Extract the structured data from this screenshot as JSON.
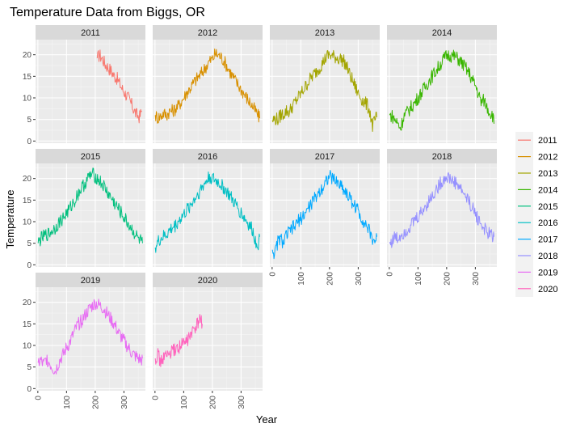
{
  "chart_data": {
    "type": "line",
    "title": "Temperature Data from Biggs, OR",
    "xlabel": "Year",
    "ylabel": "Temperature",
    "xlim": [
      -8,
      375
    ],
    "ylim": [
      -0.5,
      23.5
    ],
    "x_ticks": [
      0,
      100,
      200,
      300
    ],
    "y_ticks": [
      0,
      5,
      10,
      15,
      20
    ],
    "grid": true,
    "layout": "facet_wrap by year, 4 columns",
    "legend_position": "right",
    "series": [
      {
        "name": "2011",
        "color": "#F8766D",
        "x": [
          207,
          215,
          225,
          235,
          245,
          255,
          265,
          275,
          285,
          295,
          305,
          315,
          325,
          335,
          345,
          355,
          362
        ],
        "y": [
          19.2,
          20.0,
          19.1,
          17.8,
          17.1,
          16.3,
          15.2,
          14.6,
          13.3,
          12.0,
          11.0,
          10.0,
          8.7,
          7.2,
          6.0,
          5.6,
          7.0
        ]
      },
      {
        "name": "2012",
        "color": "#D89000",
        "x": [
          1,
          10,
          20,
          30,
          40,
          50,
          60,
          70,
          80,
          90,
          100,
          110,
          120,
          130,
          140,
          150,
          160,
          170,
          180,
          190,
          200,
          210,
          220,
          230,
          240,
          250,
          260,
          270,
          280,
          290,
          300,
          310,
          320,
          330,
          340,
          350,
          360,
          365
        ],
        "y": [
          6.0,
          5.4,
          5.8,
          6.5,
          6.0,
          6.9,
          7.0,
          7.4,
          8.0,
          9.0,
          10.0,
          11.2,
          12.0,
          13.0,
          14.0,
          14.8,
          15.5,
          16.5,
          17.5,
          18.5,
          19.0,
          20.2,
          20.0,
          19.5,
          18.6,
          17.5,
          16.2,
          15.1,
          14.0,
          13.0,
          12.0,
          11.0,
          10.0,
          9.0,
          8.0,
          7.0,
          5.8,
          5.3
        ]
      },
      {
        "name": "2013",
        "color": "#A3A500",
        "x": [
          1,
          10,
          20,
          30,
          40,
          50,
          60,
          70,
          80,
          90,
          100,
          110,
          120,
          130,
          140,
          150,
          160,
          170,
          180,
          190,
          200,
          210,
          220,
          230,
          240,
          250,
          260,
          270,
          280,
          290,
          300,
          310,
          320,
          330,
          340,
          350,
          360,
          365
        ],
        "y": [
          4.8,
          5.2,
          5.0,
          6.0,
          6.3,
          7.0,
          6.8,
          8.0,
          9.0,
          10.0,
          11.0,
          12.0,
          13.0,
          14.2,
          15.0,
          15.8,
          16.6,
          17.5,
          18.5,
          19.6,
          20.0,
          19.6,
          19.5,
          19.2,
          19.0,
          18.5,
          17.2,
          15.5,
          14.0,
          12.5,
          11.0,
          10.0,
          9.0,
          8.5,
          7.0,
          3.5,
          5.0,
          5.5
        ]
      },
      {
        "name": "2014",
        "color": "#39B600",
        "x": [
          1,
          10,
          20,
          30,
          40,
          50,
          60,
          70,
          80,
          90,
          100,
          110,
          120,
          130,
          140,
          150,
          160,
          170,
          180,
          190,
          200,
          210,
          220,
          230,
          240,
          250,
          260,
          270,
          280,
          290,
          300,
          310,
          320,
          330,
          340,
          350,
          360,
          365
        ],
        "y": [
          6.0,
          5.8,
          5.0,
          4.0,
          3.0,
          5.8,
          6.5,
          7.3,
          8.2,
          9.0,
          10.0,
          11.0,
          12.0,
          13.0,
          14.2,
          15.1,
          16.0,
          17.0,
          18.0,
          19.0,
          19.8,
          20.0,
          19.7,
          19.5,
          19.0,
          18.3,
          17.5,
          16.5,
          15.5,
          14.0,
          13.0,
          11.0,
          9.0,
          9.5,
          8.0,
          6.8,
          6.0,
          4.0
        ]
      },
      {
        "name": "2015",
        "color": "#00BF7D",
        "x": [
          1,
          10,
          20,
          30,
          40,
          50,
          60,
          70,
          80,
          90,
          100,
          110,
          120,
          130,
          140,
          150,
          160,
          170,
          180,
          190,
          200,
          210,
          220,
          230,
          240,
          250,
          260,
          270,
          280,
          290,
          300,
          310,
          320,
          330,
          340,
          350,
          360,
          365
        ],
        "y": [
          5.0,
          6.0,
          6.5,
          7.0,
          7.2,
          8.0,
          8.5,
          9.5,
          10.2,
          11.0,
          12.0,
          12.8,
          14.0,
          15.0,
          16.5,
          17.5,
          18.5,
          19.5,
          20.5,
          21.0,
          20.5,
          19.8,
          19.0,
          18.2,
          17.0,
          16.0,
          15.0,
          14.0,
          13.0,
          12.0,
          11.0,
          10.0,
          9.0,
          8.0,
          7.0,
          6.0,
          5.5,
          5.0
        ]
      },
      {
        "name": "2016",
        "color": "#00BFC4",
        "x": [
          1,
          10,
          20,
          30,
          40,
          50,
          60,
          70,
          80,
          90,
          100,
          110,
          120,
          130,
          140,
          150,
          160,
          170,
          180,
          190,
          200,
          210,
          220,
          230,
          240,
          250,
          260,
          270,
          280,
          290,
          300,
          310,
          320,
          330,
          340,
          350,
          360,
          365
        ],
        "y": [
          4.0,
          5.2,
          6.0,
          6.5,
          7.0,
          7.8,
          8.5,
          9.0,
          10.0,
          10.8,
          11.5,
          12.5,
          13.5,
          14.5,
          15.5,
          16.5,
          17.5,
          18.5,
          19.5,
          20.5,
          20.0,
          19.5,
          19.2,
          18.5,
          17.8,
          17.0,
          16.0,
          15.0,
          14.0,
          13.0,
          12.0,
          11.0,
          10.0,
          9.0,
          8.0,
          5.5,
          5.0,
          6.5
        ]
      },
      {
        "name": "2017",
        "color": "#00A9FF",
        "x": [
          1,
          10,
          20,
          30,
          40,
          50,
          60,
          70,
          80,
          90,
          100,
          110,
          120,
          130,
          140,
          150,
          160,
          170,
          180,
          190,
          200,
          210,
          220,
          230,
          240,
          250,
          260,
          270,
          280,
          290,
          300,
          310,
          320,
          330,
          340,
          350,
          360,
          365
        ],
        "y": [
          3.5,
          2.5,
          5.5,
          6.0,
          5.0,
          7.0,
          7.5,
          8.5,
          9.0,
          10.0,
          10.8,
          11.5,
          12.5,
          13.5,
          14.5,
          15.5,
          16.5,
          17.5,
          18.5,
          19.8,
          20.5,
          20.0,
          19.5,
          19.0,
          18.5,
          17.5,
          16.5,
          15.5,
          14.5,
          13.5,
          12.5,
          11.0,
          10.0,
          9.0,
          7.5,
          6.0,
          5.5,
          6.5
        ]
      },
      {
        "name": "2018",
        "color": "#9590FF",
        "x": [
          1,
          10,
          20,
          30,
          40,
          50,
          60,
          70,
          80,
          90,
          100,
          110,
          120,
          130,
          140,
          150,
          160,
          170,
          180,
          190,
          200,
          210,
          220,
          230,
          240,
          250,
          260,
          270,
          280,
          290,
          300,
          310,
          320,
          330,
          340,
          350,
          360,
          365
        ],
        "y": [
          5.0,
          5.5,
          6.5,
          6.0,
          7.0,
          7.5,
          8.0,
          8.8,
          9.5,
          10.5,
          11.0,
          12.0,
          13.0,
          14.0,
          15.0,
          16.0,
          17.0,
          18.0,
          19.0,
          19.8,
          20.5,
          20.0,
          19.5,
          19.0,
          18.5,
          17.5,
          16.5,
          15.5,
          14.5,
          13.0,
          12.0,
          10.5,
          9.5,
          8.5,
          7.5,
          7.0,
          6.8,
          6.5
        ]
      },
      {
        "name": "2019",
        "color": "#E76BF3",
        "x": [
          1,
          10,
          20,
          30,
          40,
          50,
          60,
          70,
          80,
          90,
          100,
          110,
          120,
          130,
          140,
          150,
          160,
          170,
          180,
          190,
          200,
          210,
          220,
          230,
          240,
          250,
          260,
          270,
          280,
          290,
          300,
          310,
          320,
          330,
          340,
          350,
          360,
          365
        ],
        "y": [
          6.0,
          6.5,
          5.5,
          7.0,
          6.0,
          5.0,
          4.0,
          5.5,
          7.0,
          8.0,
          9.5,
          10.5,
          12.0,
          13.5,
          14.8,
          15.5,
          16.5,
          17.5,
          18.5,
          19.2,
          19.8,
          19.5,
          19.0,
          18.5,
          17.5,
          16.5,
          15.5,
          14.5,
          13.0,
          12.0,
          11.0,
          10.0,
          9.0,
          8.0,
          7.5,
          7.0,
          6.5,
          7.0
        ]
      },
      {
        "name": "2020",
        "color": "#FF62BC",
        "x": [
          1,
          10,
          20,
          30,
          40,
          50,
          60,
          70,
          80,
          90,
          100,
          110,
          120,
          130,
          140,
          150,
          160,
          165
        ],
        "y": [
          7.0,
          8.0,
          6.0,
          7.5,
          7.5,
          8.0,
          8.5,
          9.0,
          9.5,
          10.0,
          10.5,
          11.0,
          12.0,
          13.0,
          14.0,
          15.0,
          16.5,
          15.0
        ]
      }
    ]
  }
}
